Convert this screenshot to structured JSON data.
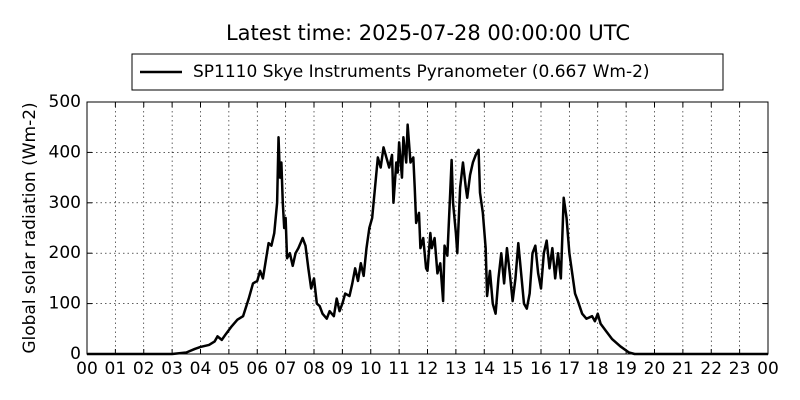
{
  "chart_data": {
    "type": "line",
    "title": "Latest time: 2025-07-28 00:00:00 UTC",
    "y_label": "Global solar radiation (Wm-2)",
    "legend": "upper center",
    "grid": true,
    "series": [
      {
        "name": "SP1110 Skye Instruments Pyranometer (0.667 Wm-2)",
        "color": "#000000",
        "x": [
          0,
          3.0,
          3.5,
          3.8,
          4.0,
          4.3,
          4.5,
          4.6,
          4.75,
          4.9,
          5.1,
          5.3,
          5.5,
          5.7,
          5.85,
          6.0,
          6.1,
          6.2,
          6.3,
          6.4,
          6.5,
          6.6,
          6.7,
          6.75,
          6.8,
          6.85,
          6.9,
          6.95,
          7.0,
          7.05,
          7.15,
          7.25,
          7.35,
          7.45,
          7.6,
          7.7,
          7.8,
          7.9,
          8.0,
          8.1,
          8.2,
          8.3,
          8.45,
          8.55,
          8.7,
          8.8,
          8.9,
          9.0,
          9.1,
          9.25,
          9.35,
          9.45,
          9.55,
          9.65,
          9.75,
          9.85,
          9.95,
          10.05,
          10.15,
          10.25,
          10.35,
          10.45,
          10.55,
          10.65,
          10.75,
          10.8,
          10.9,
          10.95,
          11.0,
          11.1,
          11.15,
          11.25,
          11.3,
          11.4,
          11.5,
          11.55,
          11.6,
          11.7,
          11.75,
          11.85,
          11.95,
          12.0,
          12.1,
          12.15,
          12.25,
          12.35,
          12.45,
          12.55,
          12.6,
          12.7,
          12.8,
          12.85,
          12.9,
          13.0,
          13.05,
          13.15,
          13.25,
          13.35,
          13.4,
          13.5,
          13.6,
          13.7,
          13.8,
          13.85,
          13.95,
          14.05,
          14.1,
          14.2,
          14.3,
          14.4,
          14.5,
          14.6,
          14.7,
          14.8,
          14.9,
          15.0,
          15.1,
          15.2,
          15.3,
          15.4,
          15.5,
          15.6,
          15.7,
          15.8,
          15.9,
          16.0,
          16.1,
          16.2,
          16.3,
          16.4,
          16.5,
          16.6,
          16.7,
          16.8,
          16.9,
          17.0,
          17.1,
          17.2,
          17.3,
          17.45,
          17.6,
          17.8,
          17.9,
          18.0,
          18.1,
          18.3,
          18.5,
          18.8,
          19.1,
          19.3,
          24
        ],
        "values": [
          0,
          0,
          3,
          10,
          14,
          18,
          25,
          35,
          28,
          40,
          55,
          68,
          75,
          110,
          140,
          145,
          165,
          150,
          185,
          220,
          215,
          240,
          300,
          430,
          350,
          380,
          300,
          250,
          270,
          190,
          200,
          175,
          200,
          210,
          230,
          215,
          170,
          130,
          150,
          100,
          95,
          80,
          70,
          85,
          75,
          110,
          85,
          100,
          120,
          115,
          140,
          170,
          145,
          180,
          155,
          210,
          250,
          270,
          330,
          390,
          370,
          410,
          390,
          370,
          395,
          300,
          380,
          360,
          420,
          350,
          430,
          380,
          455,
          380,
          390,
          330,
          260,
          280,
          210,
          230,
          170,
          165,
          240,
          210,
          230,
          160,
          180,
          105,
          215,
          195,
          320,
          385,
          300,
          240,
          200,
          330,
          380,
          330,
          310,
          355,
          380,
          395,
          405,
          320,
          280,
          210,
          115,
          165,
          100,
          80,
          150,
          200,
          140,
          210,
          160,
          105,
          150,
          220,
          160,
          100,
          90,
          120,
          200,
          215,
          160,
          130,
          200,
          225,
          170,
          210,
          150,
          200,
          150,
          310,
          270,
          200,
          160,
          120,
          105,
          80,
          70,
          75,
          65,
          80,
          60,
          45,
          30,
          15,
          3,
          0,
          0
        ]
      }
    ],
    "xlim": [
      0,
      24
    ],
    "xticks": [
      {
        "value": 0,
        "label": "00"
      },
      {
        "value": 1,
        "label": "01"
      },
      {
        "value": 2,
        "label": "02"
      },
      {
        "value": 3,
        "label": "03"
      },
      {
        "value": 4,
        "label": "04"
      },
      {
        "value": 5,
        "label": "05"
      },
      {
        "value": 6,
        "label": "06"
      },
      {
        "value": 7,
        "label": "07"
      },
      {
        "value": 8,
        "label": "08"
      },
      {
        "value": 9,
        "label": "09"
      },
      {
        "value": 10,
        "label": "10"
      },
      {
        "value": 11,
        "label": "11"
      },
      {
        "value": 12,
        "label": "12"
      },
      {
        "value": 13,
        "label": "13"
      },
      {
        "value": 14,
        "label": "14"
      },
      {
        "value": 15,
        "label": "15"
      },
      {
        "value": 16,
        "label": "16"
      },
      {
        "value": 17,
        "label": "17"
      },
      {
        "value": 18,
        "label": "18"
      },
      {
        "value": 19,
        "label": "19"
      },
      {
        "value": 20,
        "label": "20"
      },
      {
        "value": 21,
        "label": "21"
      },
      {
        "value": 22,
        "label": "22"
      },
      {
        "value": 23,
        "label": "23"
      },
      {
        "value": 24,
        "label": "00"
      }
    ],
    "ylim": [
      0,
      500
    ],
    "yticks": [
      0,
      100,
      200,
      300,
      400,
      500
    ]
  }
}
